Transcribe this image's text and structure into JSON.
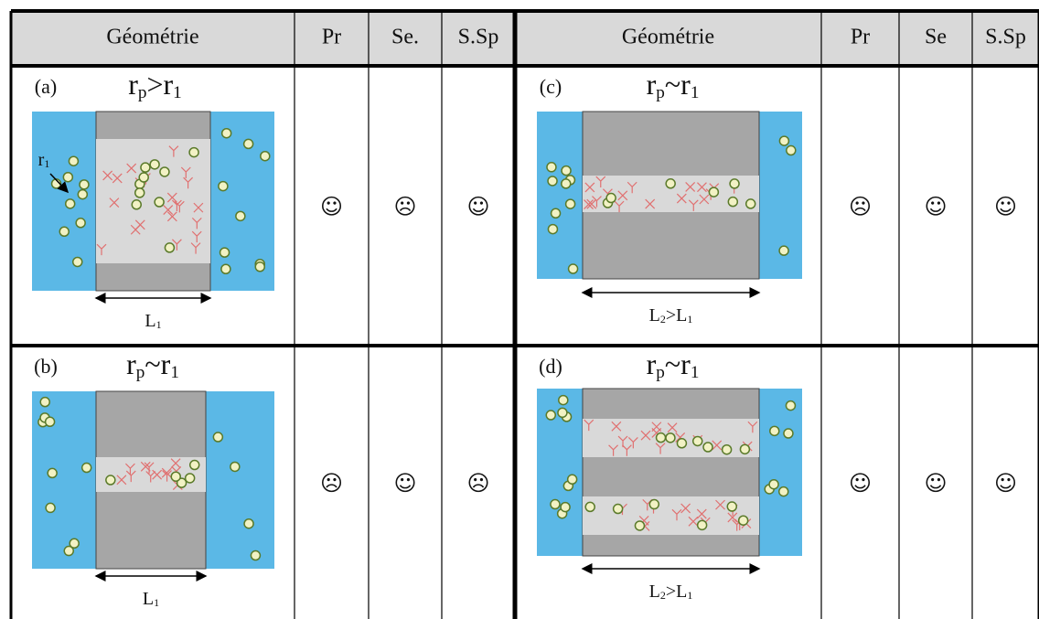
{
  "header": {
    "left": [
      "Géométrie",
      "Pr",
      "Se.",
      "S.Sp"
    ],
    "right": [
      "Géométrie",
      "Pr",
      "Se",
      "S.Sp"
    ]
  },
  "rows": [
    {
      "left": {
        "label": "(a)",
        "condition": [
          "r",
          "p",
          ">",
          "r",
          "1"
        ],
        "radius_label": [
          "r",
          "1"
        ],
        "length": [
          "L",
          "1"
        ],
        "ratings": [
          "☺",
          "☹",
          "☺"
        ]
      },
      "right": {
        "label": "(c)",
        "condition": [
          "r",
          "p",
          "~",
          "r",
          "1"
        ],
        "length": [
          "L",
          "2",
          ">",
          "L",
          "1"
        ],
        "ratings": [
          "☹",
          "☺",
          "☺"
        ]
      }
    },
    {
      "left": {
        "label": "(b)",
        "condition": [
          "r",
          "p",
          "~",
          "r",
          "1"
        ],
        "length": [
          "L",
          "1"
        ],
        "ratings": [
          "☹",
          "☺",
          "☹"
        ]
      },
      "right": {
        "label": "(d)",
        "condition": [
          "r",
          "p",
          "~",
          "r",
          "1"
        ],
        "length": [
          "L",
          "2",
          ">",
          "L",
          "1"
        ],
        "ratings": [
          "☺",
          "☺",
          "☺"
        ]
      }
    }
  ]
}
